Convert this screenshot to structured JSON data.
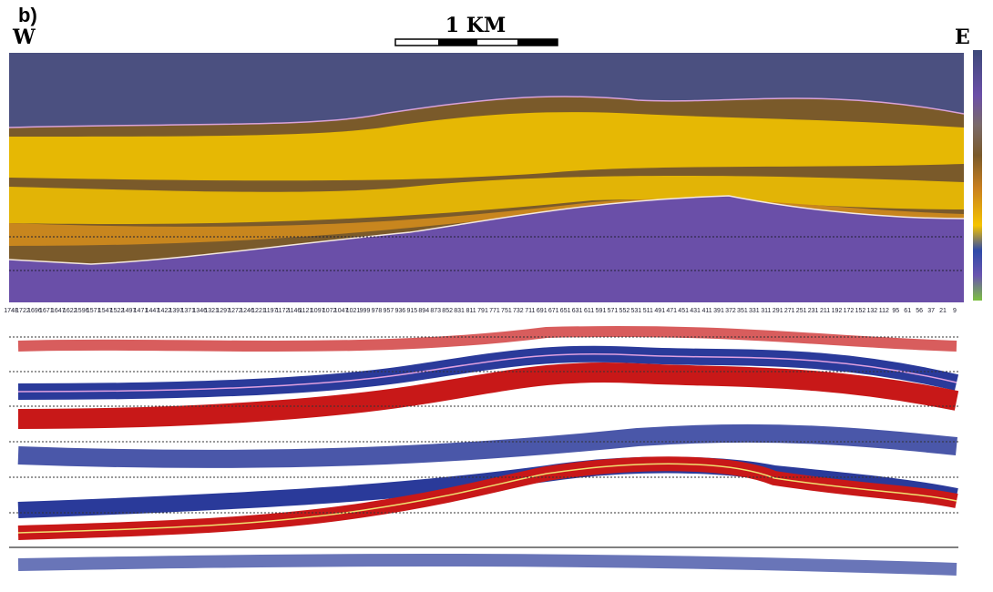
{
  "header": {
    "label": "b)",
    "west": "W",
    "east": "E",
    "scale": "1 KM"
  },
  "traces": [
    "1748",
    "1722",
    "1696",
    "1671",
    "1647",
    "1622",
    "1596",
    "1571",
    "1547",
    "1522",
    "1497",
    "1471",
    "1447",
    "1422",
    "1397",
    "1371",
    "1346",
    "1321",
    "1297",
    "1272",
    "1246",
    "1221",
    "1197",
    "1172",
    "1146",
    "1121",
    "1097",
    "1072",
    "1047",
    "1021",
    "999",
    "978",
    "957",
    "936",
    "915",
    "894",
    "873",
    "852",
    "831",
    "811",
    "791",
    "771",
    "751",
    "732",
    "711",
    "691",
    "671",
    "651",
    "631",
    "611",
    "591",
    "571",
    "552",
    "531",
    "511",
    "491",
    "471",
    "451",
    "431",
    "411",
    "391",
    "372",
    "351",
    "331",
    "311",
    "291",
    "271",
    "251",
    "231",
    "211",
    "192",
    "172",
    "152",
    "132",
    "112",
    "95",
    "61",
    "56",
    "37",
    "21",
    "9"
  ]
}
